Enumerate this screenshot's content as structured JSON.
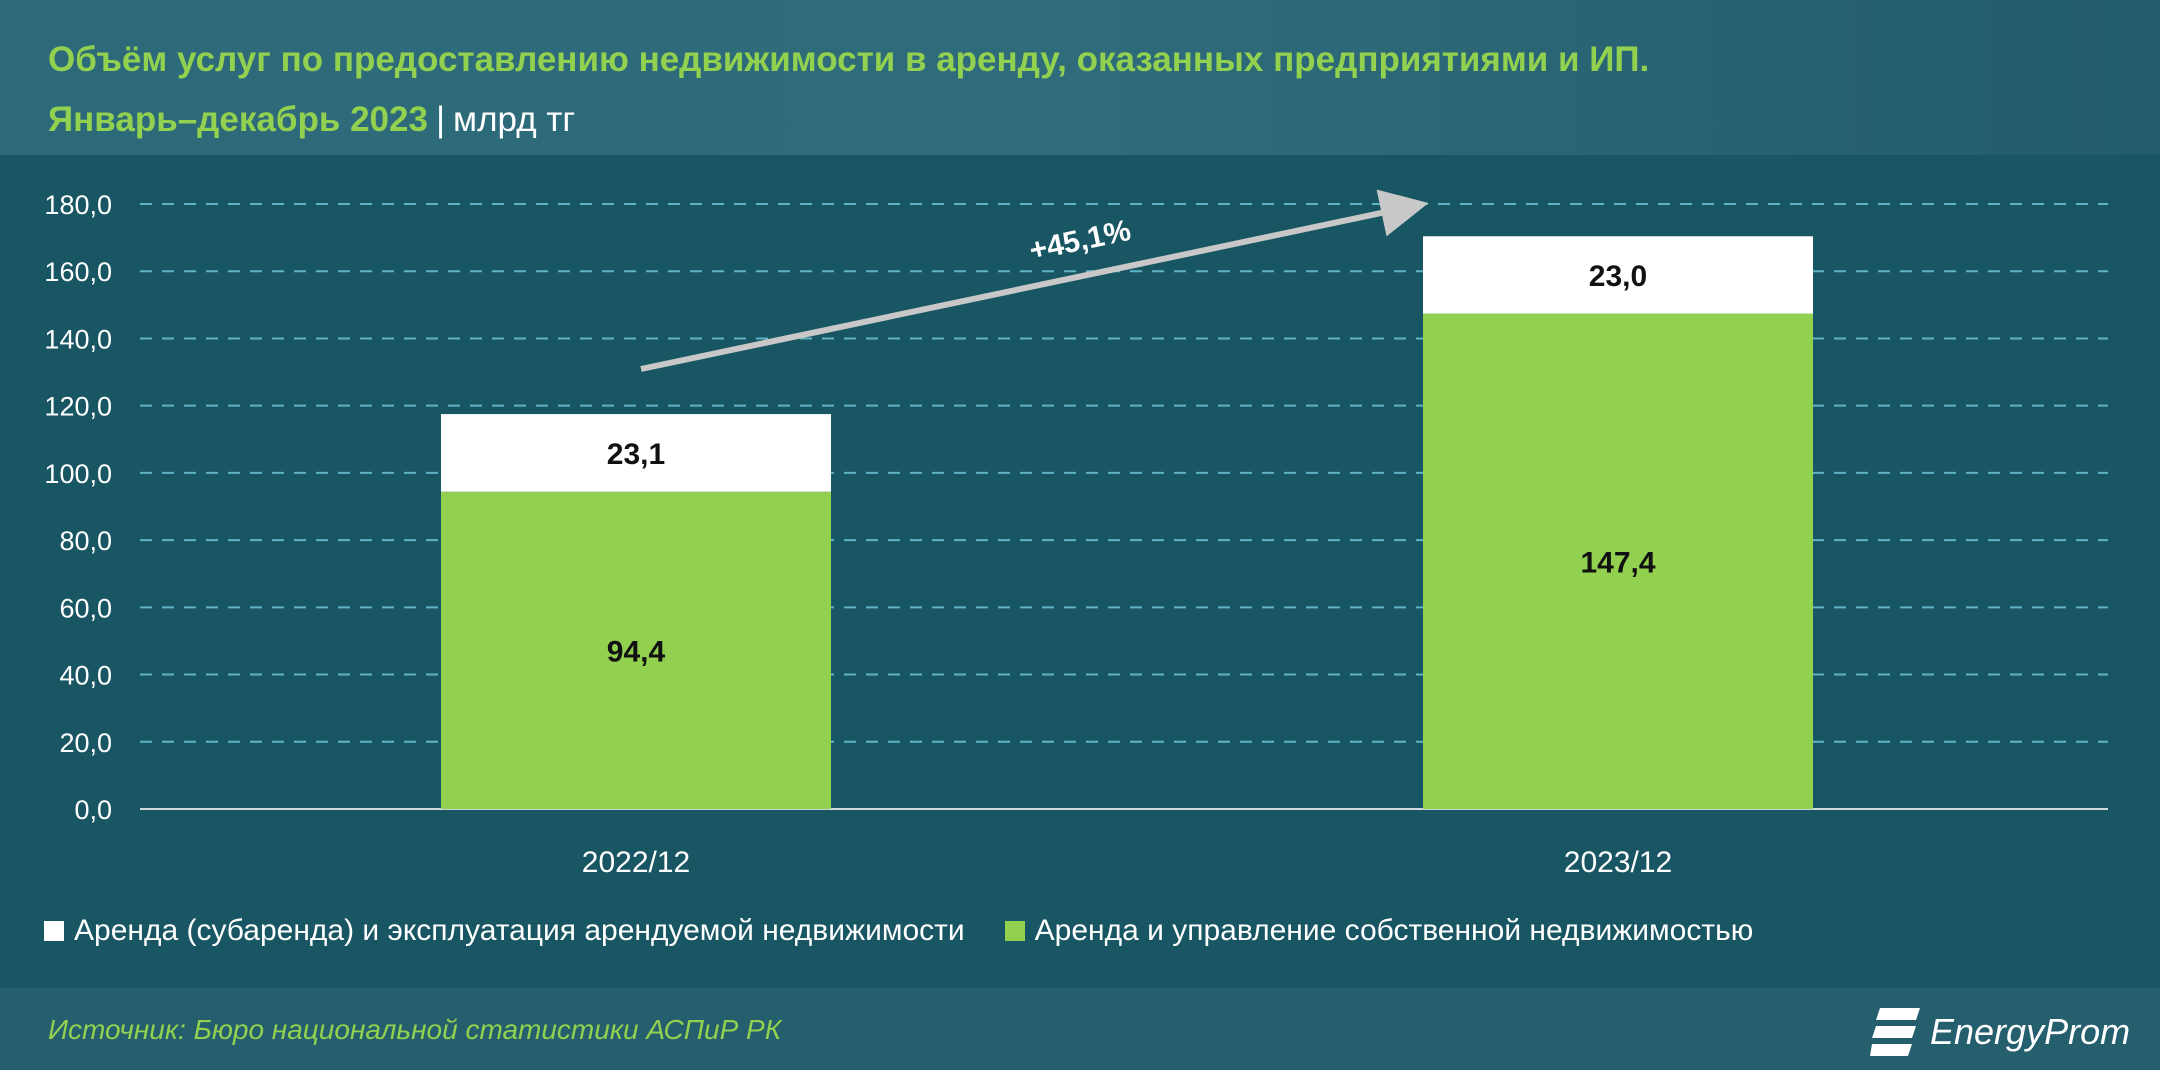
{
  "title": {
    "line1": "Объём услуг по предоставлению недвижимости в аренду, оказанных предприятиями и ИП.",
    "line2": "Январь–декабрь 2023",
    "separator": "|",
    "unit": "млрд тг"
  },
  "chart_data": {
    "type": "bar",
    "stacked": true,
    "categories": [
      "2022/12",
      "2023/12"
    ],
    "series": [
      {
        "name": "Аренда и управление собственной недвижимостью",
        "values": [
          94.4,
          147.4
        ],
        "labels": [
          "94,4",
          "147,4"
        ],
        "color": "#92d050"
      },
      {
        "name": "Аренда (субаренда) и эксплуатация арендуемой недвижимости",
        "values": [
          23.1,
          23.0
        ],
        "labels": [
          "23,1",
          "23,0"
        ],
        "color": "#ffffff"
      }
    ],
    "ylim": [
      0,
      180
    ],
    "yticks": [
      "0,0",
      "20,0",
      "40,0",
      "60,0",
      "80,0",
      "100,0",
      "120,0",
      "140,0",
      "160,0",
      "180,0"
    ],
    "grid": true,
    "legend": "bottom",
    "annotation": "+45,1%"
  },
  "legend": {
    "items": [
      "Аренда (субаренда) и эксплуатация арендуемой недвижимости",
      "Аренда и управление собственной недвижимостью"
    ]
  },
  "footer": {
    "source": "Источник: Бюро национальной статистики АСПиР РК",
    "logo": "EnergyProm"
  },
  "colors": {
    "background": "#195664",
    "accent": "#92d050"
  }
}
